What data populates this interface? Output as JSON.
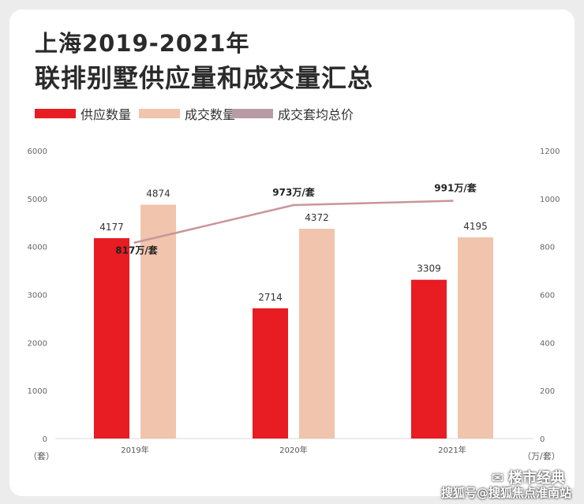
{
  "header": {
    "title_line1": "上海2019-2021年",
    "title_line2": "联排别墅供应量和成交量汇总"
  },
  "legend": [
    {
      "label": "供应数量",
      "color": "#e81c23"
    },
    {
      "label": "成交数量",
      "color": "#f1c4ad"
    },
    {
      "label": "成交套均总价",
      "color": "#b99ba5"
    }
  ],
  "chart_data": {
    "type": "bar",
    "categories": [
      "2019年",
      "2020年",
      "2021年"
    ],
    "series": [
      {
        "name": "供应数量",
        "values": [
          4177,
          2714,
          3309
        ],
        "color": "#e81c23",
        "axis": "left"
      },
      {
        "name": "成交数量",
        "values": [
          4874,
          4372,
          4195
        ],
        "color": "#f1c4ad",
        "axis": "left"
      },
      {
        "name": "成交套均总价",
        "type": "line",
        "values": [
          817,
          973,
          991
        ],
        "color": "#c9959a",
        "axis": "right",
        "labels": [
          "817万/套",
          "973万/套",
          "991万/套"
        ]
      }
    ],
    "ylim_left": [
      0,
      6000
    ],
    "ylim_right": [
      0,
      1200
    ],
    "yticks_left": [
      "0",
      "1000",
      "2000",
      "3000",
      "4000",
      "5000",
      "6000"
    ],
    "yticks_right": [
      "0",
      "200",
      "400",
      "600",
      "800",
      "1000",
      "1200"
    ],
    "ylabel_left": "（套）",
    "ylabel_right": "（万/套）",
    "grid": false
  },
  "watermark": {
    "brand": "楼市经典",
    "brand_icon": "wechat-icon",
    "text": "搜狐号@搜狐焦点淮南站"
  }
}
